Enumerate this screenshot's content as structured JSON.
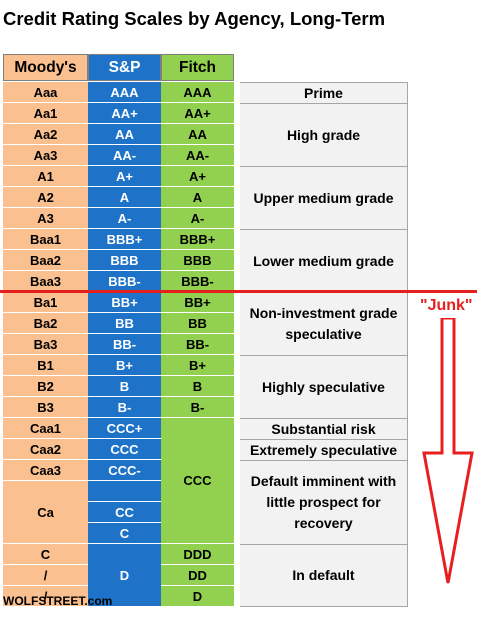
{
  "title": "Credit Rating Scales by Agency, Long-Term",
  "headers": {
    "moodys": "Moody's",
    "sp": "S&P",
    "fitch": "Fitch"
  },
  "rows": [
    {
      "moodys": "Aaa",
      "sp": "AAA",
      "fitch": "AAA"
    },
    {
      "moodys": "Aa1",
      "sp": "AA+",
      "fitch": "AA+"
    },
    {
      "moodys": "Aa2",
      "sp": "AA",
      "fitch": "AA"
    },
    {
      "moodys": "Aa3",
      "sp": "AA-",
      "fitch": "AA-"
    },
    {
      "moodys": "A1",
      "sp": "A+",
      "fitch": "A+"
    },
    {
      "moodys": "A2",
      "sp": "A",
      "fitch": "A"
    },
    {
      "moodys": "A3",
      "sp": "A-",
      "fitch": "A-"
    },
    {
      "moodys": "Baa1",
      "sp": "BBB+",
      "fitch": "BBB+"
    },
    {
      "moodys": "Baa2",
      "sp": "BBB",
      "fitch": "BBB"
    },
    {
      "moodys": "Baa3",
      "sp": "BBB-",
      "fitch": "BBB-"
    },
    {
      "moodys": "Ba1",
      "sp": "BB+",
      "fitch": "BB+"
    },
    {
      "moodys": "Ba2",
      "sp": "BB",
      "fitch": "BB"
    },
    {
      "moodys": "Ba3",
      "sp": "BB-",
      "fitch": "BB-"
    },
    {
      "moodys": "B1",
      "sp": "B+",
      "fitch": "B+"
    },
    {
      "moodys": "B2",
      "sp": "B",
      "fitch": "B"
    },
    {
      "moodys": "B3",
      "sp": "B-",
      "fitch": "B-"
    },
    {
      "moodys": "Caa1",
      "sp": "CCC+"
    },
    {
      "moodys": "Caa2",
      "sp": "CCC"
    },
    {
      "moodys": "Caa3",
      "sp": "CCC-"
    },
    {
      "moodys": "Ca"
    },
    {
      "sp": "CC"
    },
    {
      "sp": "C"
    },
    {
      "moodys": "C",
      "fitch": "DDD"
    },
    {
      "moodys": "/",
      "fitch": "DD"
    },
    {
      "moodys": "/",
      "fitch": "D"
    }
  ],
  "merged": {
    "fitch_ccc": "CCC",
    "sp_d": "D"
  },
  "grades": [
    {
      "label": "Prime"
    },
    {
      "label": "High grade"
    },
    {
      "label": "Upper medium grade"
    },
    {
      "label": "Lower medium grade"
    },
    {
      "label": "Non-investment grade speculative"
    },
    {
      "label": "Highly speculative"
    },
    {
      "label": "Substantial risk"
    },
    {
      "label": "Extremely speculative"
    },
    {
      "label": "Default imminent with little prospect for recovery"
    },
    {
      "label": "In default"
    }
  ],
  "junk_label": "\"Junk\"",
  "footer": "WOLFSTREET.com",
  "colors": {
    "moodys": "#fac090",
    "sp": "#1e73c9",
    "fitch": "#92d050",
    "grade": "#f2f2f2",
    "junk": "#e6201f"
  }
}
